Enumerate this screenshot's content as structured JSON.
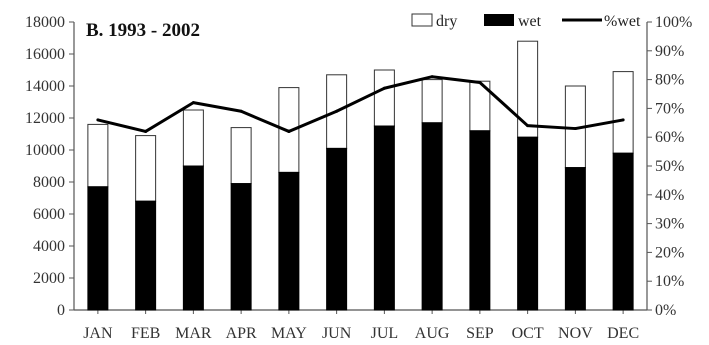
{
  "chart_data": {
    "type": "bar",
    "title": "B. 1993 - 2002",
    "categories": [
      "JAN",
      "FEB",
      "MAR",
      "APR",
      "MAY",
      "JUN",
      "JUL",
      "AUG",
      "SEP",
      "OCT",
      "NOV",
      "DEC"
    ],
    "series": [
      {
        "name": "dry",
        "values": [
          3900,
          4100,
          3500,
          3500,
          5300,
          4600,
          3500,
          2700,
          3100,
          6000,
          5100,
          5100
        ],
        "color": "#ffffff"
      },
      {
        "name": "wet",
        "values": [
          7700,
          6800,
          9000,
          7900,
          8600,
          10100,
          11500,
          11700,
          11200,
          10800,
          8900,
          9800
        ],
        "color": "#000000"
      },
      {
        "name": "%wet",
        "values": [
          66,
          62,
          72,
          69,
          62,
          69,
          77,
          81,
          79,
          64,
          63,
          66
        ],
        "axis": "right",
        "color": "#000000"
      }
    ],
    "stacked": true,
    "ylim": [
      0,
      18000
    ],
    "yticks": [
      0,
      2000,
      4000,
      6000,
      8000,
      10000,
      12000,
      14000,
      16000,
      18000
    ],
    "y2lim": [
      0,
      100
    ],
    "y2ticks": [
      "0%",
      "10%",
      "20%",
      "30%",
      "40%",
      "50%",
      "60%",
      "70%",
      "80%",
      "90%",
      "100%"
    ],
    "xlabel": "",
    "ylabel": "",
    "legend_position": "top-right",
    "grid": false
  }
}
